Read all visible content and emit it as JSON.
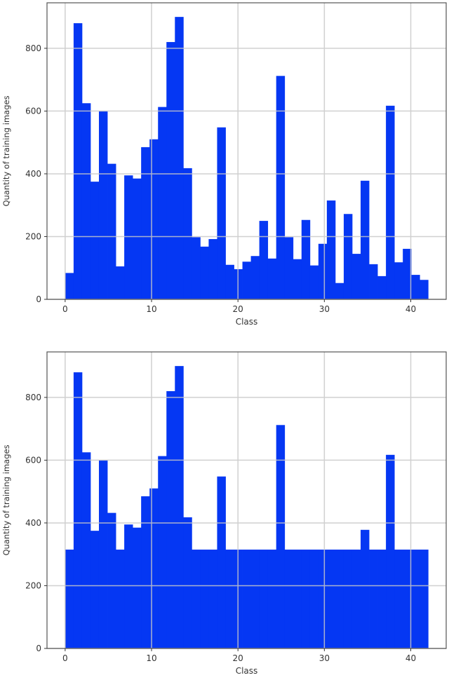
{
  "figure": {
    "bar_color": "#0537f3",
    "grid_color": "#c8c8c8",
    "frame_color": "#555555"
  },
  "chart_data": [
    {
      "type": "bar",
      "title": "",
      "xlabel": "Class",
      "ylabel": "Quantity of training images",
      "xlim": [
        -2.1,
        44.1
      ],
      "ylim": [
        0,
        945
      ],
      "xticks": [
        0,
        10,
        20,
        30,
        40
      ],
      "yticks": [
        0,
        200,
        400,
        600,
        800
      ],
      "grid": true,
      "bin_width": 0.977,
      "categories": [
        0,
        1,
        2,
        3,
        4,
        5,
        6,
        7,
        8,
        9,
        10,
        11,
        12,
        13,
        14,
        15,
        16,
        17,
        18,
        19,
        20,
        21,
        22,
        23,
        24,
        25,
        26,
        27,
        28,
        29,
        30,
        31,
        32,
        33,
        34,
        35,
        36,
        37,
        38,
        39,
        40,
        41,
        42
      ],
      "values": [
        84,
        880,
        625,
        375,
        600,
        432,
        105,
        395,
        385,
        485,
        510,
        613,
        820,
        900,
        418,
        198,
        168,
        192,
        548,
        110,
        96,
        120,
        138,
        250,
        130,
        712,
        198,
        128,
        253,
        108,
        177,
        315,
        52,
        272,
        145,
        378,
        112,
        74,
        617,
        118,
        161,
        78,
        62
      ]
    },
    {
      "type": "bar",
      "title": "",
      "xlabel": "Class",
      "ylabel": "Quantity of training images",
      "xlim": [
        -2.1,
        44.1
      ],
      "ylim": [
        0,
        945
      ],
      "xticks": [
        0,
        10,
        20,
        30,
        40
      ],
      "yticks": [
        0,
        200,
        400,
        600,
        800
      ],
      "grid": true,
      "bin_width": 0.977,
      "categories": [
        0,
        1,
        2,
        3,
        4,
        5,
        6,
        7,
        8,
        9,
        10,
        11,
        12,
        13,
        14,
        15,
        16,
        17,
        18,
        19,
        20,
        21,
        22,
        23,
        24,
        25,
        26,
        27,
        28,
        29,
        30,
        31,
        32,
        33,
        34,
        35,
        36,
        37,
        38,
        39,
        40,
        41,
        42
      ],
      "values": [
        315,
        880,
        625,
        375,
        600,
        432,
        315,
        395,
        385,
        485,
        510,
        613,
        820,
        900,
        418,
        315,
        315,
        315,
        548,
        315,
        315,
        315,
        315,
        315,
        315,
        712,
        315,
        315,
        315,
        315,
        315,
        315,
        315,
        315,
        315,
        378,
        315,
        315,
        617,
        315,
        315,
        315,
        315
      ]
    }
  ]
}
